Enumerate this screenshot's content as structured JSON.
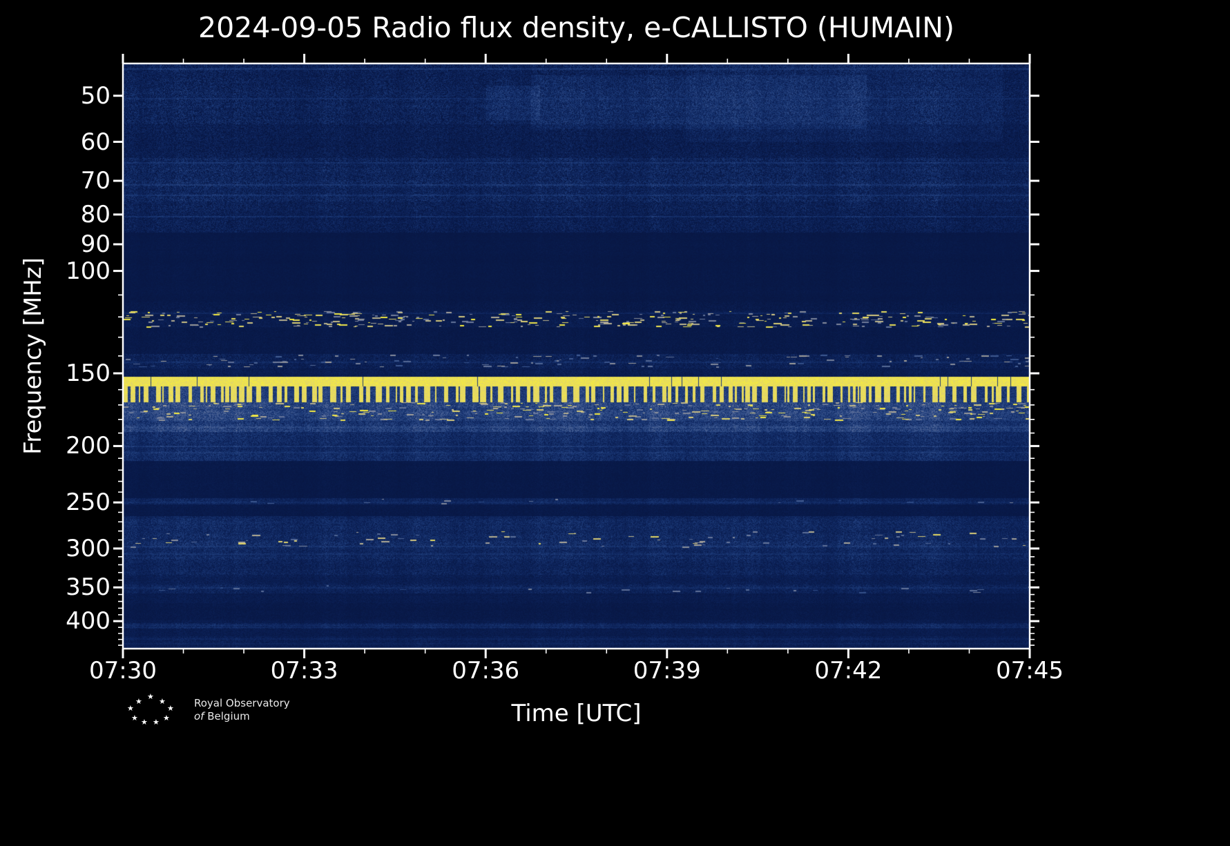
{
  "chart_data": {
    "type": "heatmap",
    "title": "2024-09-05 Radio flux density, e-CALLISTO (HUMAIN)",
    "xlabel": "Time [UTC]",
    "ylabel": "Frequency [MHz]",
    "x_range_utc": [
      "07:30",
      "07:45"
    ],
    "x_tick_labels": [
      "07:30",
      "07:33",
      "07:36",
      "07:39",
      "07:42",
      "07:45"
    ],
    "x_major_tick_minutes": 3,
    "x_minor_tick_minutes": 1,
    "y_scale": "log",
    "y_axis_inverted": true,
    "y_range_mhz": [
      44,
      446
    ],
    "y_tick_labels_mhz": [
      50,
      60,
      70,
      80,
      90,
      100,
      150,
      200,
      250,
      300,
      350,
      400
    ],
    "y_minor_ticks_mhz": [
      110,
      120,
      130,
      140,
      160,
      170,
      180,
      190,
      210,
      220,
      230,
      240,
      260,
      270,
      280,
      290,
      310,
      320,
      330,
      340,
      360,
      370,
      380,
      390,
      410,
      420,
      430,
      440
    ],
    "grid": false,
    "legend": "none",
    "frame_color": "#ffffff",
    "background_color": "#000000",
    "colormap_stops": [
      [
        0.0,
        "#071540"
      ],
      [
        0.12,
        "#0c2259"
      ],
      [
        0.25,
        "#1c3a78"
      ],
      [
        0.4,
        "#3d5890"
      ],
      [
        0.55,
        "#6d7a9b"
      ],
      [
        0.7,
        "#a8a49a"
      ],
      [
        0.82,
        "#d6c97e"
      ],
      [
        1.0,
        "#f9ef3a"
      ]
    ],
    "bands": [
      {
        "f": [
          44,
          49
        ],
        "style": "noise",
        "base": 0.1,
        "noise": 0.11
      },
      {
        "f": [
          49,
          56
        ],
        "style": "noise",
        "base": 0.11,
        "noise": 0.11
      },
      {
        "f": [
          56,
          64
        ],
        "style": "noise",
        "base": 0.08,
        "noise": 0.09
      },
      {
        "f": [
          64,
          76
        ],
        "style": "noise",
        "base": 0.12,
        "noise": 0.11
      },
      {
        "f": [
          76,
          86
        ],
        "style": "noise",
        "base": 0.09,
        "noise": 0.09
      },
      {
        "f": [
          86,
          113
        ],
        "style": "noise",
        "base": 0.035,
        "noise": 0.02
      },
      {
        "f": [
          113,
          117
        ],
        "style": "noise",
        "base": 0.05,
        "noise": 0.04
      },
      {
        "f": [
          117,
          125
        ],
        "style": "speckle",
        "base": 0.07,
        "noise": 0.05,
        "dash_density": 0.08,
        "dash_min": 0.5,
        "dash_max": 1.0
      },
      {
        "f": [
          125,
          139
        ],
        "style": "noise",
        "base": 0.045,
        "noise": 0.03
      },
      {
        "f": [
          139,
          147
        ],
        "style": "speckle",
        "base": 0.1,
        "noise": 0.08,
        "dash_density": 0.03,
        "dash_min": 0.35,
        "dash_max": 0.7
      },
      {
        "f": [
          147,
          152
        ],
        "style": "noise",
        "base": 0.07,
        "noise": 0.05
      },
      {
        "f": [
          152,
          158
        ],
        "style": "bright",
        "base": 0.93,
        "noise": 0.06,
        "gap_prob": 0.012
      },
      {
        "f": [
          158,
          168
        ],
        "style": "barcode",
        "base": 0.26,
        "noise": 0.1,
        "on": 0.96,
        "on_min": 2,
        "on_max": 9,
        "off_min": 2,
        "off_max": 12
      },
      {
        "f": [
          168,
          181
        ],
        "style": "speckle",
        "base": 0.3,
        "noise": 0.14,
        "dash_density": 0.06,
        "dash_min": 0.5,
        "dash_max": 1.0
      },
      {
        "f": [
          181,
          189
        ],
        "style": "noise",
        "base": 0.25,
        "noise": 0.13
      },
      {
        "f": [
          189,
          212
        ],
        "style": "noise",
        "base": 0.16,
        "noise": 0.09
      },
      {
        "f": [
          212,
          246
        ],
        "style": "noise",
        "base": 0.045,
        "noise": 0.025
      },
      {
        "f": [
          246,
          252
        ],
        "style": "speckle",
        "base": 0.12,
        "noise": 0.07,
        "dash_density": 0.012,
        "dash_min": 0.3,
        "dash_max": 0.6
      },
      {
        "f": [
          252,
          264
        ],
        "style": "noise",
        "base": 0.05,
        "noise": 0.03
      },
      {
        "f": [
          264,
          280
        ],
        "style": "noise",
        "base": 0.15,
        "noise": 0.09
      },
      {
        "f": [
          280,
          299
        ],
        "style": "speckle",
        "base": 0.16,
        "noise": 0.1,
        "dash_density": 0.02,
        "dash_min": 0.45,
        "dash_max": 0.9
      },
      {
        "f": [
          299,
          313
        ],
        "style": "noise",
        "base": 0.15,
        "noise": 0.09
      },
      {
        "f": [
          313,
          333
        ],
        "style": "noise",
        "base": 0.12,
        "noise": 0.08
      },
      {
        "f": [
          333,
          346
        ],
        "style": "noise",
        "base": 0.09,
        "noise": 0.06
      },
      {
        "f": [
          346,
          358
        ],
        "style": "speckle",
        "base": 0.12,
        "noise": 0.08,
        "dash_density": 0.012,
        "dash_min": 0.3,
        "dash_max": 0.6
      },
      {
        "f": [
          358,
          372
        ],
        "style": "noise",
        "base": 0.06,
        "noise": 0.04
      },
      {
        "f": [
          372,
          398
        ],
        "style": "noise",
        "base": 0.045,
        "noise": 0.03
      },
      {
        "f": [
          398,
          403
        ],
        "style": "noise",
        "base": 0.06,
        "noise": 0.04
      },
      {
        "f": [
          403,
          412
        ],
        "style": "noise",
        "base": 0.11,
        "noise": 0.07
      },
      {
        "f": [
          412,
          425
        ],
        "style": "noise",
        "base": 0.06,
        "noise": 0.04
      },
      {
        "f": [
          425,
          446
        ],
        "style": "noise",
        "base": 0.085,
        "noise": 0.06
      }
    ],
    "rfi_lines_mhz": [
      {
        "f": 44.8,
        "v": 0.2
      },
      {
        "f": 50.5,
        "v": 0.17
      },
      {
        "f": 65,
        "v": 0.19
      },
      {
        "f": 71,
        "v": 0.21
      },
      {
        "f": 74,
        "v": 0.19
      },
      {
        "f": 80.5,
        "v": 0.18
      },
      {
        "f": 118,
        "v": 0.14
      },
      {
        "f": 143,
        "v": 0.16
      },
      {
        "f": 185,
        "v": 0.3
      },
      {
        "f": 200,
        "v": 0.22
      },
      {
        "f": 205,
        "v": 0.2
      },
      {
        "f": 249,
        "v": 0.16
      },
      {
        "f": 297,
        "v": 0.2
      },
      {
        "f": 306,
        "v": 0.18
      },
      {
        "f": 350,
        "v": 0.16
      },
      {
        "f": 405,
        "v": 0.16
      },
      {
        "f": 409,
        "v": 0.15
      },
      {
        "f": 428,
        "v": 0.12
      },
      {
        "f": 436,
        "v": 0.12
      }
    ],
    "patches": [
      {
        "f": [
          46,
          57
        ],
        "t": [
          0.45,
          0.82
        ],
        "boost": 0.05
      },
      {
        "f": [
          44,
          60
        ],
        "t": [
          0.62,
          0.97
        ],
        "boost": 0.035
      },
      {
        "f": [
          48,
          55
        ],
        "t": [
          0.4,
          0.46
        ],
        "boost": 0.06
      }
    ]
  },
  "footer": {
    "logo_line1": "Royal Observatory",
    "logo_line2_italic": "of",
    "logo_line2_rest": "Belgium"
  }
}
